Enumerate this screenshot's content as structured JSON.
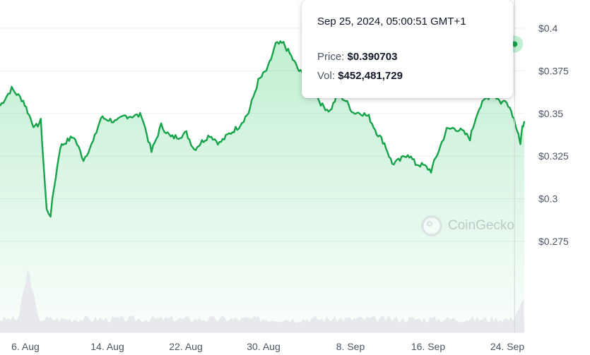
{
  "chart_data": {
    "type": "area",
    "title": "",
    "xlabel": "",
    "ylabel": "",
    "x_tick_labels": [
      "6. Aug",
      "14. Aug",
      "22. Aug",
      "30. Aug",
      "8. Sep",
      "16. Sep",
      "24. Sep"
    ],
    "y_tick_labels": [
      "$0.4",
      "$0.375",
      "$0.35",
      "$0.325",
      "$0.3",
      "$0.275"
    ],
    "y_ticks": [
      0.4,
      0.375,
      0.35,
      0.325,
      0.3,
      0.275
    ],
    "ylim": [
      0.275,
      0.4
    ],
    "x_range_days": [
      -1.8,
      25.2
    ],
    "grid": true,
    "line_color": "#16a34a",
    "area_color": "#22c55e",
    "volume_color": "#e5e7eb",
    "series": [
      {
        "values": {
          "x_days": [
            -1.8,
            -1.2,
            -0.6,
            -0.3,
            0.0,
            0.3,
            0.6,
            0.8,
            1.0,
            1.3,
            1.6,
            2.0,
            2.5,
            3.0,
            3.4,
            3.8,
            4.2,
            4.6,
            5.0,
            5.5,
            6.0,
            6.5,
            7.0,
            7.4,
            7.8,
            8.2,
            8.6,
            9.0,
            9.5,
            10.0,
            10.5,
            11.0,
            11.5,
            12.0,
            12.4,
            12.8,
            13.2,
            13.6,
            14.0,
            14.4,
            14.8,
            15.2,
            15.6,
            16.0,
            16.4,
            16.8,
            17.2,
            17.6,
            18.0,
            18.4,
            18.8,
            19.2,
            19.6,
            20.0,
            20.4,
            20.8,
            21.2,
            21.6,
            22.0,
            22.4,
            22.8,
            23.2,
            23.6,
            24.0,
            24.3,
            24.6,
            24.9,
            25.0,
            25.1,
            25.2
          ],
          "price": [
            0.3545,
            0.3645,
            0.3575,
            0.349,
            0.3415,
            0.3455,
            0.2935,
            0.2905,
            0.3075,
            0.3305,
            0.3335,
            0.3365,
            0.323,
            0.3335,
            0.3475,
            0.3465,
            0.345,
            0.3485,
            0.3485,
            0.349,
            0.3275,
            0.343,
            0.336,
            0.3365,
            0.3385,
            0.329,
            0.3335,
            0.3375,
            0.3325,
            0.338,
            0.3425,
            0.3505,
            0.369,
            0.3765,
            0.3905,
            0.391,
            0.3835,
            0.375,
            0.3715,
            0.3625,
            0.3545,
            0.3515,
            0.3615,
            0.3575,
            0.3505,
            0.3505,
            0.348,
            0.339,
            0.3325,
            0.3205,
            0.3225,
            0.3265,
            0.3205,
            0.3195,
            0.3165,
            0.3285,
            0.3405,
            0.3415,
            0.3395,
            0.3355,
            0.3515,
            0.3585,
            0.3615,
            0.3565,
            0.3575,
            0.3495,
            0.3385,
            0.3315,
            0.3415,
            0.3455
          ]
        }
      }
    ],
    "tooltip": {
      "date": "Sep 25, 2024, 05:00:51 GMT+1",
      "price_label": "Price:",
      "price_value": "$0.390703",
      "vol_label": "Vol:",
      "vol_value": "$452,481,729"
    },
    "watermark": "CoinGecko"
  }
}
